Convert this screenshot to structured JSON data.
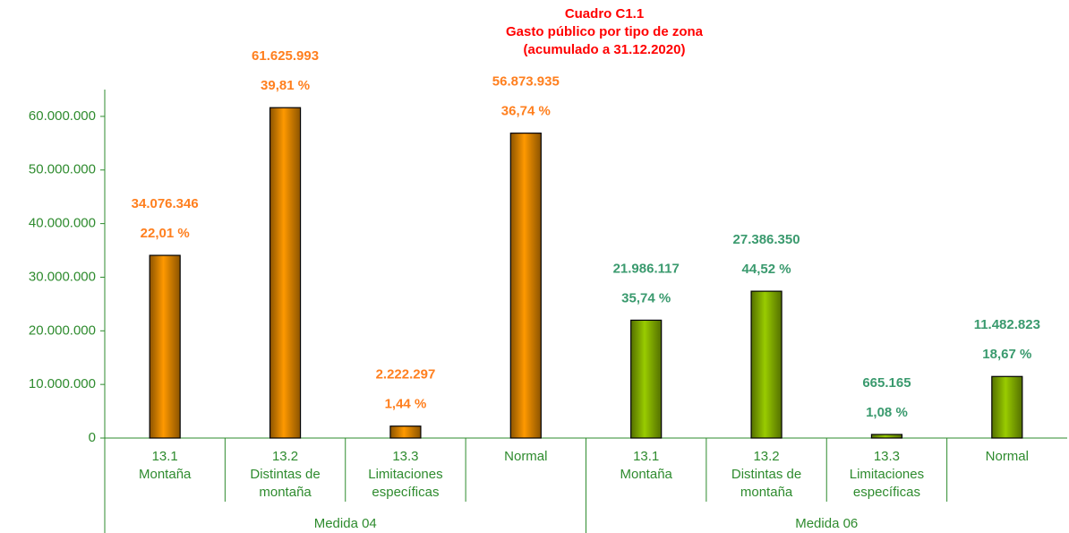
{
  "chart_data": {
    "type": "bar",
    "title": [
      "Cuadro C1.1",
      "Gasto público por tipo de zona",
      "(acumulado a 31.12.2020)"
    ],
    "ylim": [
      0,
      65000000
    ],
    "yticks": [
      {
        "value": 0,
        "label": "0"
      },
      {
        "value": 10000000,
        "label": "10.000.000"
      },
      {
        "value": 20000000,
        "label": "20.000.000"
      },
      {
        "value": 30000000,
        "label": "30.000.000"
      },
      {
        "value": 40000000,
        "label": "40.000.000"
      },
      {
        "value": 50000000,
        "label": "50.000.000"
      },
      {
        "value": 60000000,
        "label": "60.000.000"
      }
    ],
    "groups": [
      {
        "name": "Medida 04",
        "color": "#ff9900",
        "label_color": "#ff7f1e",
        "categories": [
          [
            "13.1",
            "Montaña"
          ],
          [
            "13.2",
            "Distintas de",
            "montaña"
          ],
          [
            "13.3",
            "Limitaciones",
            "específicas"
          ],
          [
            "Normal"
          ]
        ],
        "values": [
          34076346,
          61625993,
          2222297,
          56873935
        ],
        "value_labels": [
          "34.076.346",
          "61.625.993",
          "2.222.297",
          "56.873.935"
        ],
        "percent": [
          22.01,
          39.81,
          1.44,
          36.74
        ],
        "percent_labels": [
          "22,01 %",
          "39,81 %",
          "1,44 %",
          "36,74 %"
        ]
      },
      {
        "name": "Medida 06",
        "color": "#99cc00",
        "label_color": "#3a9a6e",
        "categories": [
          [
            "13.1",
            "Montaña"
          ],
          [
            "13.2",
            "Distintas de",
            "montaña"
          ],
          [
            "13.3",
            "Limitaciones",
            "específicas"
          ],
          [
            "Normal"
          ]
        ],
        "values": [
          21986117,
          27386350,
          665165,
          11482823
        ],
        "value_labels": [
          "21.986.117",
          "27.386.350",
          "665.165",
          "11.482.823"
        ],
        "percent": [
          35.74,
          44.52,
          1.08,
          18.67
        ],
        "percent_labels": [
          "35,74 %",
          "44,52 %",
          "1,08 %",
          "18,67 %"
        ]
      }
    ]
  }
}
